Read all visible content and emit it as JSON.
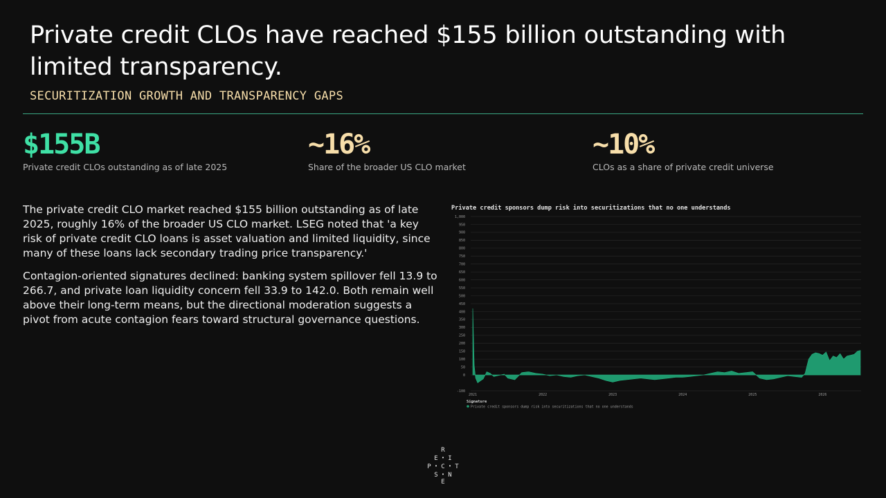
{
  "slide": {
    "title": "Private credit CLOs have reached $155 billion outstanding with limited transparency.",
    "subtitle": "SECURITIZATION GROWTH AND TRANSPARENCY GAPS"
  },
  "colors": {
    "accent_green": "#3fe0a5",
    "accent_cream": "#f7deaa",
    "series": "#1f9a6f",
    "rule": "#3aa883"
  },
  "stats": [
    {
      "value": "$155B",
      "label": "Private credit CLOs outstanding as of late 2025",
      "color": "#3fe0a5"
    },
    {
      "value": "~16%",
      "label": "Share of the broader US CLO market",
      "color": "#f7deaa"
    },
    {
      "value": "~10%",
      "label": "CLOs as a share of private credit universe",
      "color": "#f7deaa"
    }
  ],
  "body": [
    "The private credit CLO market reached $155 billion outstanding as of late 2025, roughly 16% of the broader US CLO market. LSEG noted that 'a key risk of private credit CLO loans is asset valuation and limited liquidity, since many of these loans lack secondary trading price transparency.'",
    "Contagion-oriented signatures declined: banking system spillover fell 13.9 to 266.7, and private loan liquidity concern fell 33.9 to 142.0. Both remain well above their long-term means, but the directional moderation suggests a pivot from acute contagion fears toward structural governance questions."
  ],
  "chart_data": {
    "type": "area",
    "title": "Private credit sponsors dump risk into securitizations that no one understands",
    "ylim": [
      -100,
      1000
    ],
    "yticks": [
      -100,
      0,
      50,
      100,
      150,
      200,
      250,
      300,
      350,
      400,
      450,
      500,
      550,
      600,
      650,
      700,
      750,
      800,
      850,
      900,
      950,
      1000
    ],
    "ytick_labels": [
      "-100",
      "0",
      "50",
      "100",
      "150",
      "200",
      "250",
      "300",
      "350",
      "400",
      "450",
      "500",
      "550",
      "600",
      "650",
      "700",
      "750",
      "800",
      "850",
      "900",
      "950",
      "1,000"
    ],
    "xticks": [
      {
        "label": "2021",
        "x": 2021.0
      },
      {
        "label": "2022",
        "x": 2022.0
      },
      {
        "label": "2023",
        "x": 2023.0
      },
      {
        "label": "2024",
        "x": 2024.0
      },
      {
        "label": "2025",
        "x": 2025.0
      },
      {
        "label": "2026",
        "x": 2026.0
      }
    ],
    "xlim": [
      2020.97,
      2026.55
    ],
    "legend_title": "Signature",
    "series": [
      {
        "name": "Private credit sponsors dump risk into securitizations that no one understands",
        "x": [
          2021.0,
          2021.02,
          2021.04,
          2021.07,
          2021.1,
          2021.15,
          2021.2,
          2021.25,
          2021.3,
          2021.35,
          2021.4,
          2021.45,
          2021.5,
          2021.6,
          2021.7,
          2021.8,
          2021.9,
          2022.0,
          2022.1,
          2022.2,
          2022.3,
          2022.4,
          2022.5,
          2022.6,
          2022.7,
          2022.8,
          2022.9,
          2023.0,
          2023.1,
          2023.2,
          2023.3,
          2023.4,
          2023.5,
          2023.6,
          2023.7,
          2023.8,
          2023.9,
          2024.0,
          2024.1,
          2024.2,
          2024.3,
          2024.4,
          2024.5,
          2024.6,
          2024.7,
          2024.8,
          2024.9,
          2025.0,
          2025.1,
          2025.2,
          2025.3,
          2025.4,
          2025.5,
          2025.6,
          2025.7,
          2025.75,
          2025.8,
          2025.85,
          2025.9,
          2025.95,
          2026.0,
          2026.05,
          2026.1,
          2026.15,
          2026.2,
          2026.25,
          2026.3,
          2026.35,
          2026.4,
          2026.45,
          2026.5,
          2026.54
        ],
        "y": [
          420,
          60,
          -20,
          -50,
          -40,
          -25,
          20,
          10,
          -10,
          -5,
          0,
          5,
          -20,
          -30,
          15,
          20,
          10,
          5,
          -5,
          0,
          -10,
          -15,
          -5,
          0,
          -10,
          -20,
          -35,
          -45,
          -35,
          -30,
          -25,
          -20,
          -25,
          -30,
          -25,
          -20,
          -15,
          -15,
          -10,
          -5,
          0,
          10,
          20,
          15,
          25,
          10,
          15,
          20,
          -20,
          -30,
          -25,
          -15,
          -5,
          -10,
          -15,
          10,
          100,
          130,
          140,
          135,
          125,
          145,
          90,
          120,
          110,
          135,
          100,
          120,
          125,
          130,
          150,
          155
        ]
      }
    ]
  },
  "logo": {
    "letters": [
      "R",
      "E",
      "I",
      "P",
      "C",
      "T",
      "S",
      "N",
      "E"
    ]
  }
}
